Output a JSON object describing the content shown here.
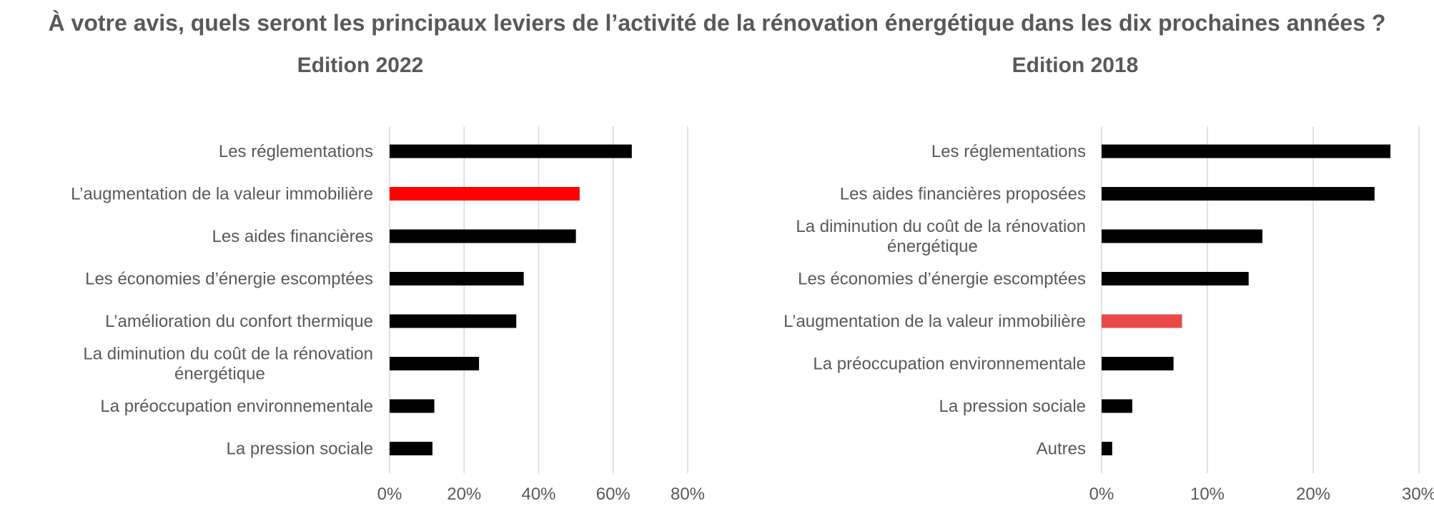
{
  "title": "À votre avis, quels seront les principaux leviers de l’activité de la rénovation énergétique dans les dix prochaines années ?",
  "colors": {
    "bar": "#000000",
    "highlight_2022": "#ff0000",
    "highlight_2018": "#e84848",
    "grid": "#d9d9d9",
    "text": "#595959"
  },
  "chart_data": [
    {
      "type": "bar",
      "orientation": "horizontal",
      "title": "Edition 2022",
      "categories": [
        "Les réglementations",
        "L’augmentation de la valeur immobilière",
        "Les aides financières",
        "Les économies d’énergie escomptées",
        "L’amélioration du confort thermique",
        "La diminution du coût de la rénovation énergétique",
        "La préoccupation environnementale",
        "La pression sociale"
      ],
      "values": [
        65,
        51,
        50,
        36,
        34,
        24,
        12,
        11.5
      ],
      "highlight_index": 1,
      "xlim": [
        0,
        80
      ],
      "xticks": [
        "0%",
        "20%",
        "40%",
        "60%",
        "80%"
      ],
      "grid": true
    },
    {
      "type": "bar",
      "orientation": "horizontal",
      "title": "Edition 2018",
      "categories": [
        "Les réglementations",
        "Les aides financières proposées",
        "La diminution du coût de la rénovation énergétique",
        "Les économies d’énergie escomptées",
        "L’augmentation de la valeur immobilière",
        "La préoccupation environnementale",
        "La pression sociale",
        "Autres"
      ],
      "values": [
        27.3,
        25.8,
        15.2,
        13.9,
        7.6,
        6.8,
        2.9,
        1
      ],
      "highlight_index": 4,
      "xlim": [
        0,
        30
      ],
      "xticks": [
        "0%",
        "10%",
        "20%",
        "30%"
      ],
      "grid": true
    }
  ]
}
